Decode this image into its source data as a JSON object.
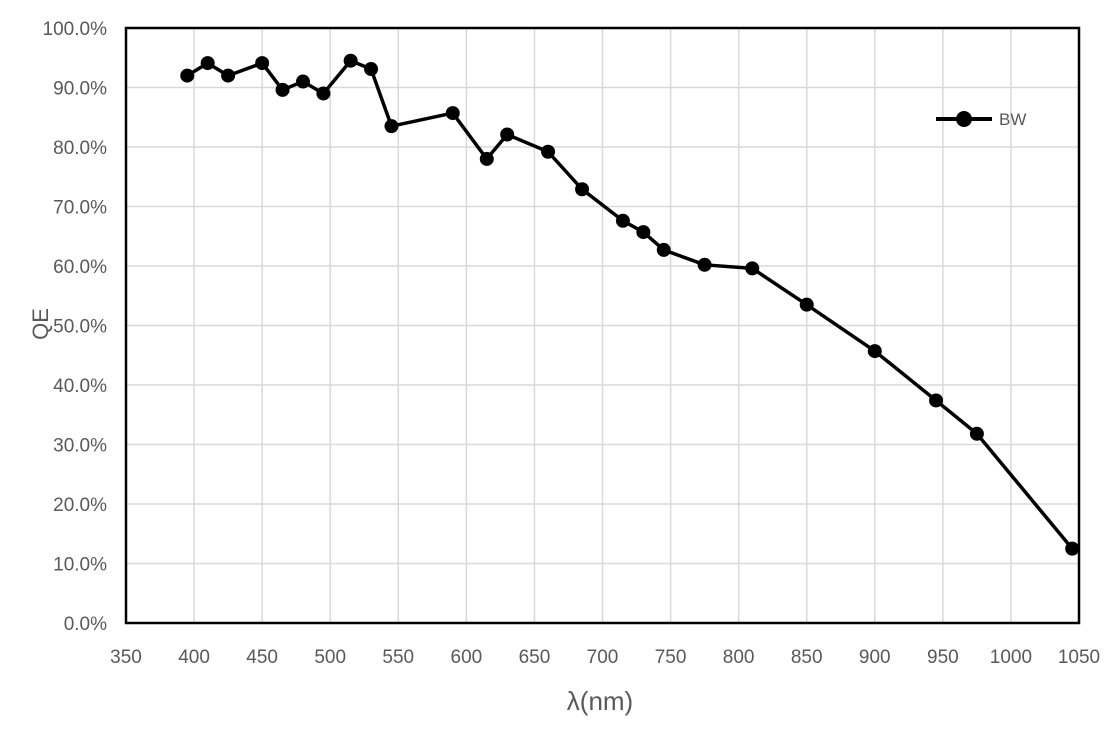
{
  "chart_data": {
    "type": "line",
    "title": "",
    "xlabel": "λ(nm)",
    "ylabel": "QE",
    "xlim": [
      350,
      1050
    ],
    "ylim": [
      0,
      100
    ],
    "grid": true,
    "legend_position": "inside-top-right",
    "x_ticks": [
      350,
      400,
      450,
      500,
      550,
      600,
      650,
      700,
      750,
      800,
      850,
      900,
      950,
      1000,
      1050
    ],
    "y_ticks": [
      0,
      10,
      20,
      30,
      40,
      50,
      60,
      70,
      80,
      90,
      100
    ],
    "y_tick_labels": [
      "0.0%",
      "10.0%",
      "20.0%",
      "30.0%",
      "40.0%",
      "50.0%",
      "60.0%",
      "70.0%",
      "80.0%",
      "90.0%",
      "100.0%"
    ],
    "series": [
      {
        "name": "BW",
        "marker": "circle",
        "x": [
          395,
          410,
          425,
          450,
          465,
          480,
          495,
          515,
          530,
          545,
          590,
          615,
          630,
          660,
          685,
          715,
          730,
          745,
          775,
          810,
          850,
          900,
          945,
          975,
          1045
        ],
        "y": [
          92.0,
          94.1,
          92.0,
          94.1,
          89.6,
          91.0,
          89.0,
          94.5,
          93.1,
          83.5,
          85.7,
          78.0,
          82.1,
          79.2,
          72.9,
          67.6,
          65.7,
          62.7,
          60.2,
          59.6,
          53.5,
          45.7,
          37.4,
          31.8,
          12.5
        ]
      }
    ],
    "colors": {
      "series": "#000000",
      "gridline": "#d9d9d9",
      "plot_border": "#000000",
      "text": "#595959",
      "background": "#ffffff"
    }
  }
}
